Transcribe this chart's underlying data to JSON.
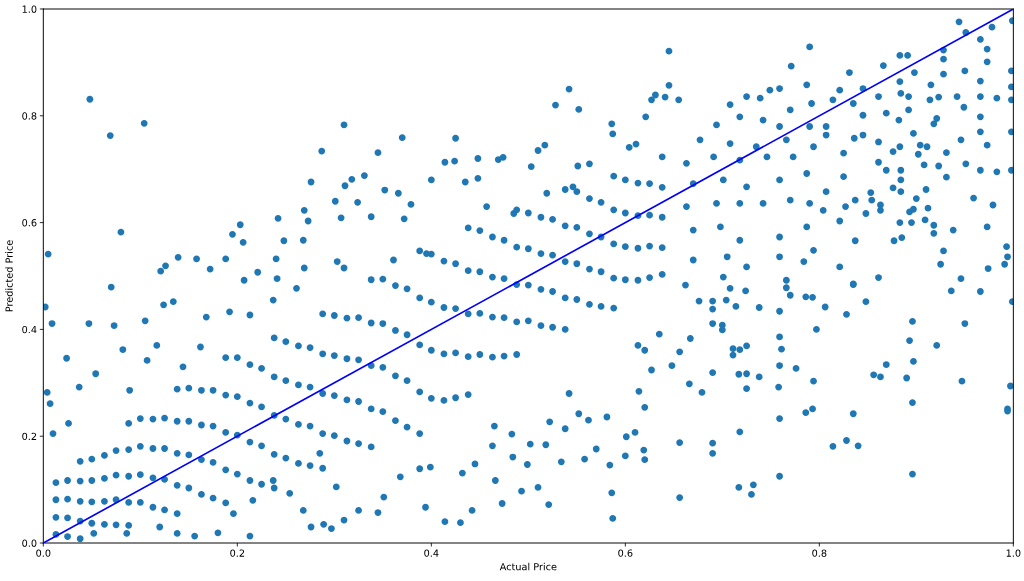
{
  "chart_data": {
    "type": "scatter",
    "xlabel": "Actual Price",
    "ylabel": "Predicted Price",
    "xlim": [
      0,
      1
    ],
    "ylim": [
      0,
      1
    ],
    "xticks": [
      {
        "value": 0,
        "label": "0.0"
      },
      0.2,
      0.4,
      0.6,
      0.8,
      {
        "value": 1,
        "label": "1.0"
      }
    ],
    "yticks": [
      {
        "value": 0,
        "label": "0.0"
      },
      0.2,
      0.4,
      0.6,
      0.8,
      {
        "value": 1,
        "label": "1.0"
      }
    ],
    "marker": "circle",
    "series": [
      {
        "color": "#1f77b4",
        "x": [
          0.048,
          0.069,
          0.104,
          0.08,
          0.005,
          0.07,
          0.31,
          0.287,
          0.276,
          0.311,
          0.301,
          0.269,
          0.273,
          0.307,
          0.242,
          0.203,
          0.195,
          0.248,
          0.268,
          0.206,
          0.139,
          0.158,
          0.188,
          0.24,
          0.126,
          0.121,
          0.172,
          0.221,
          0.269,
          0.31,
          0.207,
          0.241,
          0.303,
          0.002,
          0.009,
          0.047,
          0.073,
          0.105,
          0.024,
          0.004,
          0.007,
          0.124,
          0.134,
          0.082,
          0.054,
          0.037,
          0.01,
          0.026,
          0.089,
          0.107,
          0.117,
          0.144,
          0.162,
          0.168,
          0.192,
          0.213,
          0.237,
          0.261,
          0.138,
          0.156,
          0.18,
          0.213,
          0.276,
          0.289,
          0.297,
          0.254,
          0.268,
          0.285,
          0.302,
          0.237,
          0.216,
          0.196,
          0.12,
          0.086,
          0.052,
          0.645,
          0.542,
          0.528,
          0.552,
          0.37,
          0.425,
          0.345,
          0.414,
          0.424,
          0.448,
          0.469,
          0.474,
          0.517,
          0.51,
          0.586,
          0.587,
          0.621,
          0.627,
          0.631,
          0.641,
          0.645,
          0.655,
          0.331,
          0.318,
          0.352,
          0.366,
          0.4,
          0.324,
          0.379,
          0.338,
          0.372,
          0.435,
          0.448,
          0.503,
          0.551,
          0.563,
          0.604,
          0.611,
          0.361,
          0.395,
          0.457,
          0.485,
          0.519,
          0.546,
          0.944,
          0.951,
          0.978,
          0.966,
          0.973,
          0.973,
          0.999,
          0.79,
          0.771,
          0.883,
          0.891,
          0.928,
          0.928,
          0.95,
          0.866,
          0.831,
          0.928,
          0.966,
          0.998,
          0.998,
          0.998,
          0.998,
          0.998,
          0.983,
          0.966,
          0.949,
          0.942,
          0.966,
          0.966,
          0.973,
          0.983,
          0.966,
          0.951,
          0.959,
          0.979,
          0.973,
          0.946,
          0.931,
          0.931,
          0.923,
          0.938,
          0.928,
          0.925,
          0.946,
          0.974,
          0.993,
          0.994,
          0.991,
          0.912,
          0.91,
          0.897,
          0.9,
          0.911,
          0.904,
          0.902,
          0.908,
          0.915,
          0.923,
          0.914,
          0.892,
          0.892,
          0.884,
          0.883,
          0.898,
          0.921,
          0.918,
          0.897,
          0.883,
          0.876,
          0.882,
          0.869,
          0.861,
          0.845,
          0.835,
          0.845,
          0.845,
          0.836,
          0.861,
          0.861,
          0.869,
          0.884,
          0.884,
          0.884,
          0.876,
          0.853,
          0.854,
          0.863,
          0.848,
          0.863,
          0.837,
          0.827,
          0.821,
          0.837,
          0.821,
          0.835,
          0.861,
          0.877,
          0.885,
          0.883,
          0.895,
          0.909,
          0.918,
          0.918,
          0.893,
          0.749,
          0.759,
          0.787,
          0.708,
          0.725,
          0.739,
          0.77,
          0.792,
          0.694,
          0.718,
          0.742,
          0.759,
          0.79,
          0.677,
          0.708,
          0.735,
          0.766,
          0.663,
          0.691,
          0.718,
          0.746,
          0.773,
          0.794,
          0.67,
          0.701,
          0.725,
          0.759,
          0.787,
          0.663,
          0.694,
          0.718,
          0.742,
          0.77,
          0.79,
          0.67,
          0.698,
          0.718,
          0.759,
          0.787,
          0.67,
          0.705,
          0.725,
          0.759,
          0.784,
          0.794,
          0.701,
          0.766,
          0.807,
          0.804,
          0.825,
          0.825,
          0.807,
          0.814,
          0.821,
          0.807,
          0.662,
          0.676,
          0.69,
          0.69,
          0.69,
          0.667,
          0.704,
          0.714,
          0.724,
          0.708,
          0.7,
          0.7,
          0.738,
          0.759,
          0.766,
          0.77,
          0.786,
          0.793,
          0.806,
          0.828,
          0.835,
          0.848,
          0.797,
          0.759,
          0.761,
          0.711,
          0.718,
          0.725,
          0.711,
          0.656,
          0.69,
          0.717,
          0.725,
          0.738,
          0.759,
          0.776,
          0.666,
          0.679,
          0.725,
          0.758,
          0.794,
          0.759,
          0.786,
          0.793,
          0.835,
          0.718,
          0.656,
          0.69,
          0.69,
          0.814,
          0.828,
          0.84,
          0.759,
          0.717,
          0.732,
          0.73,
          0.656,
          0.856,
          0.863,
          0.869,
          0.89,
          0.893,
          0.896,
          0.897,
          0.896,
          0.896,
          0.921,
          0.936,
          0.966,
          0.95,
          0.947,
          0.999,
          0.997,
          0.994,
          0.994,
          0.43,
          0.414,
          0.587,
          0.345,
          0.31,
          0.442,
          0.394,
          0.473,
          0.521,
          0.586,
          0.493,
          0.466,
          0.432,
          0.51,
          0.534,
          0.558,
          0.584,
          0.6,
          0.62,
          0.57,
          0.601,
          0.61,
          0.619,
          0.538,
          0.518,
          0.502,
          0.483,
          0.463,
          0.499,
          0.445,
          0.465,
          0.484,
          0.552,
          0.562,
          0.581,
          0.614,
          0.62,
          0.627,
          0.613,
          0.62,
          0.635,
          0.648,
          0.542,
          0.522,
          0.399,
          0.388,
          0.368,
          0.351,
          0.325,
          0.013,
          0.013,
          0.013,
          0.013,
          0.038,
          0.038,
          0.038,
          0.038,
          0.038,
          0.063,
          0.063,
          0.063,
          0.063,
          0.088,
          0.088,
          0.088,
          0.088,
          0.088,
          0.113,
          0.113,
          0.113,
          0.113,
          0.138,
          0.138,
          0.138,
          0.138,
          0.138,
          0.163,
          0.163,
          0.163,
          0.163,
          0.188,
          0.188,
          0.188,
          0.188,
          0.188,
          0.213,
          0.213,
          0.213,
          0.213,
          0.238,
          0.238,
          0.238,
          0.238,
          0.238,
          0.263,
          0.263,
          0.263,
          0.263,
          0.288,
          0.288,
          0.288,
          0.288,
          0.288,
          0.313,
          0.313,
          0.313,
          0.313,
          0.338,
          0.338,
          0.338,
          0.338,
          0.338,
          0.363,
          0.363,
          0.363,
          0.363,
          0.388,
          0.388,
          0.388,
          0.388,
          0.388,
          0.413,
          0.413,
          0.413,
          0.413,
          0.438,
          0.438,
          0.438,
          0.438,
          0.438,
          0.463,
          0.463,
          0.463,
          0.463,
          0.488,
          0.488,
          0.488,
          0.488,
          0.488,
          0.513,
          0.513,
          0.513,
          0.513,
          0.538,
          0.538,
          0.538,
          0.538,
          0.538,
          0.563,
          0.563,
          0.563,
          0.563,
          0.588,
          0.588,
          0.588,
          0.588,
          0.588,
          0.613,
          0.613,
          0.613,
          0.613,
          0.638,
          0.638,
          0.638,
          0.638,
          0.638,
          0.025,
          0.025,
          0.025,
          0.025,
          0.05,
          0.05,
          0.05,
          0.05,
          0.075,
          0.075,
          0.075,
          0.075,
          0.1,
          0.1,
          0.1,
          0.1,
          0.125,
          0.125,
          0.125,
          0.125,
          0.15,
          0.15,
          0.15,
          0.15,
          0.175,
          0.175,
          0.175,
          0.175,
          0.2,
          0.2,
          0.2,
          0.2,
          0.225,
          0.225,
          0.225,
          0.225,
          0.25,
          0.25,
          0.25,
          0.25,
          0.275,
          0.275,
          0.275,
          0.275,
          0.3,
          0.3,
          0.3,
          0.3,
          0.325,
          0.325,
          0.325,
          0.325,
          0.35,
          0.35,
          0.35,
          0.35,
          0.375,
          0.375,
          0.375,
          0.375,
          0.4,
          0.4,
          0.4,
          0.4,
          0.425,
          0.425,
          0.425,
          0.425,
          0.45,
          0.45,
          0.45,
          0.45,
          0.475,
          0.475,
          0.475,
          0.475,
          0.5,
          0.5,
          0.5,
          0.5,
          0.525,
          0.525,
          0.525,
          0.525,
          0.55,
          0.55,
          0.55,
          0.55,
          0.575,
          0.575,
          0.575,
          0.575,
          0.6,
          0.6,
          0.6,
          0.6,
          0.625,
          0.625,
          0.625,
          0.625
        ],
        "values": [
          0.831,
          0.763,
          0.786,
          0.582,
          0.541,
          0.479,
          0.783,
          0.734,
          0.676,
          0.669,
          0.64,
          0.623,
          0.603,
          0.609,
          0.608,
          0.596,
          0.578,
          0.566,
          0.567,
          0.563,
          0.535,
          0.532,
          0.532,
          0.532,
          0.519,
          0.509,
          0.513,
          0.507,
          0.515,
          0.515,
          0.492,
          0.495,
          0.527,
          0.442,
          0.411,
          0.411,
          0.407,
          0.416,
          0.346,
          0.282,
          0.261,
          0.446,
          0.452,
          0.362,
          0.317,
          0.292,
          0.205,
          0.224,
          0.286,
          0.342,
          0.37,
          0.33,
          0.367,
          0.423,
          0.433,
          0.427,
          0.455,
          0.477,
          0.018,
          0.013,
          0.019,
          0.013,
          0.03,
          0.035,
          0.027,
          0.093,
          0.061,
          0.168,
          0.105,
          0.117,
          0.08,
          0.055,
          0.03,
          0.018,
          0.018,
          0.921,
          0.85,
          0.82,
          0.812,
          0.759,
          0.758,
          0.731,
          0.713,
          0.715,
          0.72,
          0.718,
          0.722,
          0.745,
          0.735,
          0.785,
          0.766,
          0.798,
          0.83,
          0.839,
          0.835,
          0.857,
          0.83,
          0.688,
          0.681,
          0.661,
          0.655,
          0.68,
          0.638,
          0.634,
          0.611,
          0.607,
          0.676,
          0.683,
          0.705,
          0.706,
          0.71,
          0.741,
          0.747,
          0.53,
          0.542,
          0.63,
          0.617,
          0.655,
          0.667,
          0.976,
          0.956,
          0.966,
          0.943,
          0.925,
          0.901,
          0.978,
          0.929,
          0.893,
          0.913,
          0.913,
          0.923,
          0.906,
          0.884,
          0.894,
          0.881,
          0.878,
          0.865,
          0.884,
          0.854,
          0.83,
          0.77,
          0.698,
          0.833,
          0.836,
          0.816,
          0.836,
          0.798,
          0.77,
          0.745,
          0.695,
          0.698,
          0.71,
          0.646,
          0.633,
          0.592,
          0.755,
          0.731,
          0.685,
          0.706,
          0.586,
          0.547,
          0.522,
          0.495,
          0.514,
          0.555,
          0.536,
          0.522,
          0.627,
          0.662,
          0.625,
          0.645,
          0.742,
          0.745,
          0.728,
          0.708,
          0.858,
          0.835,
          0.83,
          0.836,
          0.811,
          0.842,
          0.864,
          0.881,
          0.795,
          0.785,
          0.767,
          0.742,
          0.733,
          0.792,
          0.805,
          0.836,
          0.851,
          0.823,
          0.801,
          0.764,
          0.758,
          0.751,
          0.713,
          0.698,
          0.698,
          0.68,
          0.658,
          0.665,
          0.656,
          0.642,
          0.633,
          0.617,
          0.623,
          0.642,
          0.63,
          0.603,
          0.566,
          0.517,
          0.485,
          0.497,
          0.566,
          0.572,
          0.6,
          0.6,
          0.605,
          0.595,
          0.58,
          0.62,
          0.848,
          0.851,
          0.858,
          0.821,
          0.836,
          0.833,
          0.811,
          0.823,
          0.783,
          0.798,
          0.792,
          0.78,
          0.78,
          0.755,
          0.748,
          0.742,
          0.755,
          0.711,
          0.723,
          0.717,
          0.723,
          0.723,
          0.742,
          0.673,
          0.68,
          0.667,
          0.68,
          0.692,
          0.63,
          0.636,
          0.636,
          0.636,
          0.642,
          0.636,
          0.586,
          0.592,
          0.567,
          0.573,
          0.592,
          0.53,
          0.536,
          0.517,
          0.536,
          0.527,
          0.548,
          0.498,
          0.492,
          0.658,
          0.623,
          0.686,
          0.73,
          0.78,
          0.83,
          0.848,
          0.764,
          0.483,
          0.453,
          0.453,
          0.438,
          0.411,
          0.383,
          0.455,
          0.443,
          0.472,
          0.477,
          0.408,
          0.399,
          0.441,
          0.434,
          0.478,
          0.464,
          0.461,
          0.46,
          0.442,
          0.428,
          0.484,
          0.452,
          0.4,
          0.386,
          0.363,
          0.364,
          0.362,
          0.369,
          0.352,
          0.358,
          0.319,
          0.316,
          0.317,
          0.311,
          0.332,
          0.327,
          0.298,
          0.282,
          0.289,
          0.292,
          0.303,
          0.233,
          0.244,
          0.251,
          0.242,
          0.208,
          0.188,
          0.187,
          0.168,
          0.181,
          0.192,
          0.182,
          0.125,
          0.104,
          0.109,
          0.091,
          0.085,
          0.315,
          0.311,
          0.334,
          0.309,
          0.379,
          0.415,
          0.34,
          0.263,
          0.129,
          0.37,
          0.472,
          0.471,
          0.411,
          0.303,
          0.452,
          0.294,
          0.251,
          0.247,
          0.038,
          0.04,
          0.046,
          0.057,
          0.043,
          0.061,
          0.067,
          0.074,
          0.072,
          0.094,
          0.097,
          0.117,
          0.131,
          0.104,
          0.152,
          0.157,
          0.146,
          0.163,
          0.156,
          0.176,
          0.199,
          0.207,
          0.174,
          0.214,
          0.184,
          0.185,
          0.204,
          0.182,
          0.147,
          0.148,
          0.219,
          0.161,
          0.242,
          0.23,
          0.236,
          0.284,
          0.254,
          0.324,
          0.37,
          0.361,
          0.391,
          0.332,
          0.28,
          0.227,
          0.142,
          0.139,
          0.124,
          0.086,
          0.061,
          0.016,
          0.048,
          0.081,
          0.113,
          0.008,
          0.041,
          0.078,
          0.116,
          0.153,
          0.035,
          0.078,
          0.121,
          0.164,
          0.033,
          0.076,
          0.125,
          0.175,
          0.224,
          0.067,
          0.122,
          0.177,
          0.232,
          0.055,
          0.108,
          0.168,
          0.228,
          0.288,
          0.091,
          0.156,
          0.221,
          0.286,
          0.075,
          0.137,
          0.207,
          0.277,
          0.347,
          0.117,
          0.189,
          0.262,
          0.334,
          0.103,
          0.166,
          0.239,
          0.311,
          0.384,
          0.149,
          0.222,
          0.296,
          0.369,
          0.14,
          0.205,
          0.28,
          0.354,
          0.429,
          0.191,
          0.268,
          0.345,
          0.421,
          0.18,
          0.251,
          0.332,
          0.412,
          0.493,
          0.229,
          0.313,
          0.398,
          0.482,
          0.205,
          0.283,
          0.371,
          0.459,
          0.547,
          0.267,
          0.354,
          0.441,
          0.528,
          0.278,
          0.349,
          0.429,
          0.51,
          0.59,
          0.348,
          0.423,
          0.498,
          0.573,
          0.353,
          0.414,
          0.484,
          0.554,
          0.624,
          0.407,
          0.475,
          0.542,
          0.61,
          0.4,
          0.459,
          0.527,
          0.594,
          0.662,
          0.447,
          0.513,
          0.579,
          0.645,
          0.44,
          0.496,
          0.56,
          0.624,
          0.687,
          0.492,
          0.552,
          0.613,
          0.674,
          0.503,
          0.553,
          0.61,
          0.666,
          0.723,
          0.012,
          0.047,
          0.082,
          0.117,
          0.037,
          0.077,
          0.117,
          0.157,
          0.034,
          0.081,
          0.127,
          0.173,
          0.076,
          0.128,
          0.181,
          0.233,
          0.062,
          0.119,
          0.177,
          0.234,
          0.103,
          0.165,
          0.228,
          0.29,
          0.084,
          0.151,
          0.219,
          0.286,
          0.129,
          0.202,
          0.274,
          0.347,
          0.11,
          0.182,
          0.255,
          0.327,
          0.159,
          0.232,
          0.304,
          0.377,
          0.145,
          0.219,
          0.292,
          0.366,
          0.201,
          0.276,
          0.351,
          0.426,
          0.186,
          0.265,
          0.343,
          0.422,
          0.246,
          0.329,
          0.411,
          0.494,
          0.217,
          0.304,
          0.39,
          0.476,
          0.271,
          0.361,
          0.451,
          0.541,
          0.272,
          0.356,
          0.439,
          0.523,
          0.353,
          0.43,
          0.508,
          0.585,
          0.35,
          0.422,
          0.495,
          0.567,
          0.416,
          0.483,
          0.551,
          0.618,
          0.404,
          0.471,
          0.539,
          0.606,
          0.456,
          0.523,
          0.591,
          0.658,
          0.443,
          0.508,
          0.573,
          0.638,
          0.493,
          0.555,
          0.618,
          0.68,
          0.497,
          0.556,
          0.614,
          0.673
        ]
      },
      {
        "type": "line",
        "color": "#0000ff",
        "x": [
          0,
          1
        ],
        "values": [
          0,
          1
        ],
        "line_style": "solid",
        "marker": "none"
      }
    ]
  }
}
